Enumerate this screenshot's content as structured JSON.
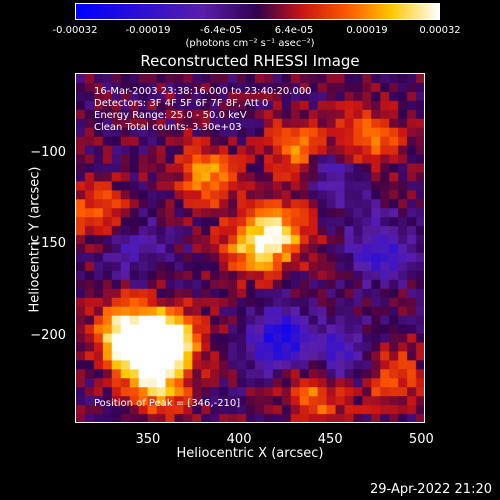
{
  "colorbar": {
    "tick_labels": [
      "-0.00032",
      "-0.00019",
      "-6.4e-05",
      "6.4e-05",
      "0.00019",
      "0.00032"
    ],
    "units": "(photons cm⁻² s⁻¹ asec⁻²)"
  },
  "chart_data": {
    "type": "heatmap",
    "title": "Reconstructed RHESSI Image",
    "xlabel": "Heliocentric X (arcsec)",
    "ylabel": "Heliocentric Y (arcsec)",
    "xlim": [
      310,
      502
    ],
    "ylim": [
      -248,
      -56
    ],
    "x_ticks": [
      350,
      400,
      450,
      500
    ],
    "y_ticks": [
      -100,
      -150,
      -200
    ],
    "color_range": [
      -0.00032,
      0.00032
    ],
    "colormap": "blue-purple-red-orange-yellow-white",
    "bright_sources": [
      {
        "x": 346,
        "y": -210,
        "level": 1.0
      },
      {
        "x": 335,
        "y": -195,
        "level": 0.9
      },
      {
        "x": 360,
        "y": -200,
        "level": 0.85
      },
      {
        "x": 420,
        "y": -140,
        "level": 0.7
      },
      {
        "x": 405,
        "y": -150,
        "level": 0.65
      },
      {
        "x": 380,
        "y": -110,
        "level": 0.6
      },
      {
        "x": 470,
        "y": -90,
        "level": 0.6
      },
      {
        "x": 430,
        "y": -95,
        "level": 0.55
      },
      {
        "x": 320,
        "y": -130,
        "level": 0.5
      },
      {
        "x": 440,
        "y": -230,
        "level": 0.6
      },
      {
        "x": 480,
        "y": -220,
        "level": 0.5
      },
      {
        "x": 355,
        "y": -230,
        "level": 0.45
      }
    ],
    "dark_regions": [
      {
        "x": 420,
        "y": -200,
        "level": -0.8
      },
      {
        "x": 475,
        "y": -150,
        "level": -0.55
      },
      {
        "x": 450,
        "y": -110,
        "level": -0.45
      },
      {
        "x": 455,
        "y": -210,
        "level": -0.6
      },
      {
        "x": 340,
        "y": -150,
        "level": -0.35
      }
    ],
    "info_lines": [
      "16-Mar-2003 23:38:16.000 to 23:40:20.000",
      "Detectors: 3F 4F 5F 6F 7F 8F, Att 0",
      "Energy Range: 25.0 - 50.0 keV",
      "Clean     Total counts: 3.30e+03"
    ],
    "peak_label": "Position of Peak = [346,-210]"
  },
  "timestamp": "29-Apr-2022 21:20"
}
